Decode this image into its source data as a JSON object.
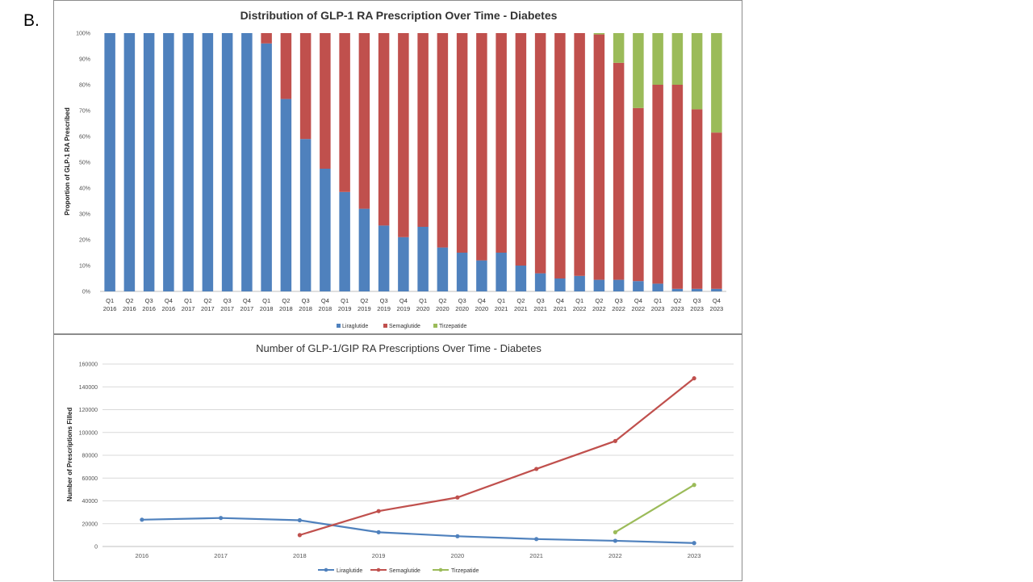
{
  "panel_label": "B.",
  "chart_data": [
    {
      "type": "bar",
      "stacked": true,
      "title": "Distribution of GLP-1 RA Prescription Over Time - Diabetes",
      "xlabel": "",
      "ylabel": "Proportion of GLP-1 RA Prescribed",
      "ylim": [
        0,
        100
      ],
      "yticks": [
        "0%",
        "10%",
        "20%",
        "30%",
        "40%",
        "50%",
        "60%",
        "70%",
        "80%",
        "90%",
        "100%"
      ],
      "grid": false,
      "legend_position": "bottom",
      "categories": [
        [
          "Q1",
          "2016"
        ],
        [
          "Q2",
          "2016"
        ],
        [
          "Q3",
          "2016"
        ],
        [
          "Q4",
          "2016"
        ],
        [
          "Q1",
          "2017"
        ],
        [
          "Q2",
          "2017"
        ],
        [
          "Q3",
          "2017"
        ],
        [
          "Q4",
          "2017"
        ],
        [
          "Q1",
          "2018"
        ],
        [
          "Q2",
          "2018"
        ],
        [
          "Q3",
          "2018"
        ],
        [
          "Q4",
          "2018"
        ],
        [
          "Q1",
          "2019"
        ],
        [
          "Q2",
          "2019"
        ],
        [
          "Q3",
          "2019"
        ],
        [
          "Q4",
          "2019"
        ],
        [
          "Q1",
          "2020"
        ],
        [
          "Q2",
          "2020"
        ],
        [
          "Q3",
          "2020"
        ],
        [
          "Q4",
          "2020"
        ],
        [
          "Q1",
          "2021"
        ],
        [
          "Q2",
          "2021"
        ],
        [
          "Q3",
          "2021"
        ],
        [
          "Q4",
          "2021"
        ],
        [
          "Q1",
          "2022"
        ],
        [
          "Q2",
          "2022"
        ],
        [
          "Q3",
          "2022"
        ],
        [
          "Q4",
          "2022"
        ],
        [
          "Q1",
          "2023"
        ],
        [
          "Q2",
          "2023"
        ],
        [
          "Q3",
          "2023"
        ],
        [
          "Q4",
          "2023"
        ]
      ],
      "series": [
        {
          "name": "Liraglutide",
          "color": "#4f81bd",
          "values": [
            100,
            100,
            100,
            100,
            100,
            100,
            100,
            100,
            96,
            74.5,
            59,
            47.5,
            38.5,
            32,
            25.5,
            21,
            25,
            17,
            15,
            12,
            15,
            10,
            7,
            5,
            6,
            4.5,
            4.5,
            4,
            3,
            1,
            1,
            1
          ]
        },
        {
          "name": "Semaglutide",
          "color": "#c0504d",
          "values": [
            0,
            0,
            0,
            0,
            0,
            0,
            0,
            0,
            4,
            25.5,
            41,
            52.5,
            61.5,
            68,
            74.5,
            79,
            75,
            83,
            85,
            88,
            85,
            90,
            93,
            95,
            94,
            95,
            84,
            67,
            77,
            79,
            69.5,
            60.5
          ]
        },
        {
          "name": "Tirzepatide",
          "color": "#9bbb59",
          "values": [
            0,
            0,
            0,
            0,
            0,
            0,
            0,
            0,
            0,
            0,
            0,
            0,
            0,
            0,
            0,
            0,
            0,
            0,
            0,
            0,
            0,
            0,
            0,
            0,
            0,
            0.5,
            11.5,
            29,
            20,
            20,
            29.5,
            38.5
          ]
        }
      ]
    },
    {
      "type": "line",
      "title": "Number of GLP-1/GIP RA Prescriptions Over Time - Diabetes",
      "xlabel": "",
      "ylabel": "Number of Prescriptions Filled",
      "ylim": [
        0,
        160000
      ],
      "yticks": [
        "0",
        "20000",
        "40000",
        "60000",
        "80000",
        "100000",
        "120000",
        "140000",
        "160000"
      ],
      "grid": true,
      "legend_position": "bottom",
      "categories": [
        "2016",
        "2017",
        "2018",
        "2019",
        "2020",
        "2021",
        "2022",
        "2023"
      ],
      "series": [
        {
          "name": "Liraglutide",
          "color": "#4f81bd",
          "values": [
            23500,
            25000,
            23000,
            12500,
            9000,
            6500,
            5000,
            3000
          ]
        },
        {
          "name": "Semaglutide",
          "color": "#c0504d",
          "values": [
            null,
            null,
            10000,
            31000,
            43000,
            68000,
            92500,
            147500
          ]
        },
        {
          "name": "Tirzepatide",
          "color": "#9bbb59",
          "values": [
            null,
            null,
            null,
            null,
            null,
            null,
            12500,
            54000
          ]
        }
      ]
    }
  ]
}
